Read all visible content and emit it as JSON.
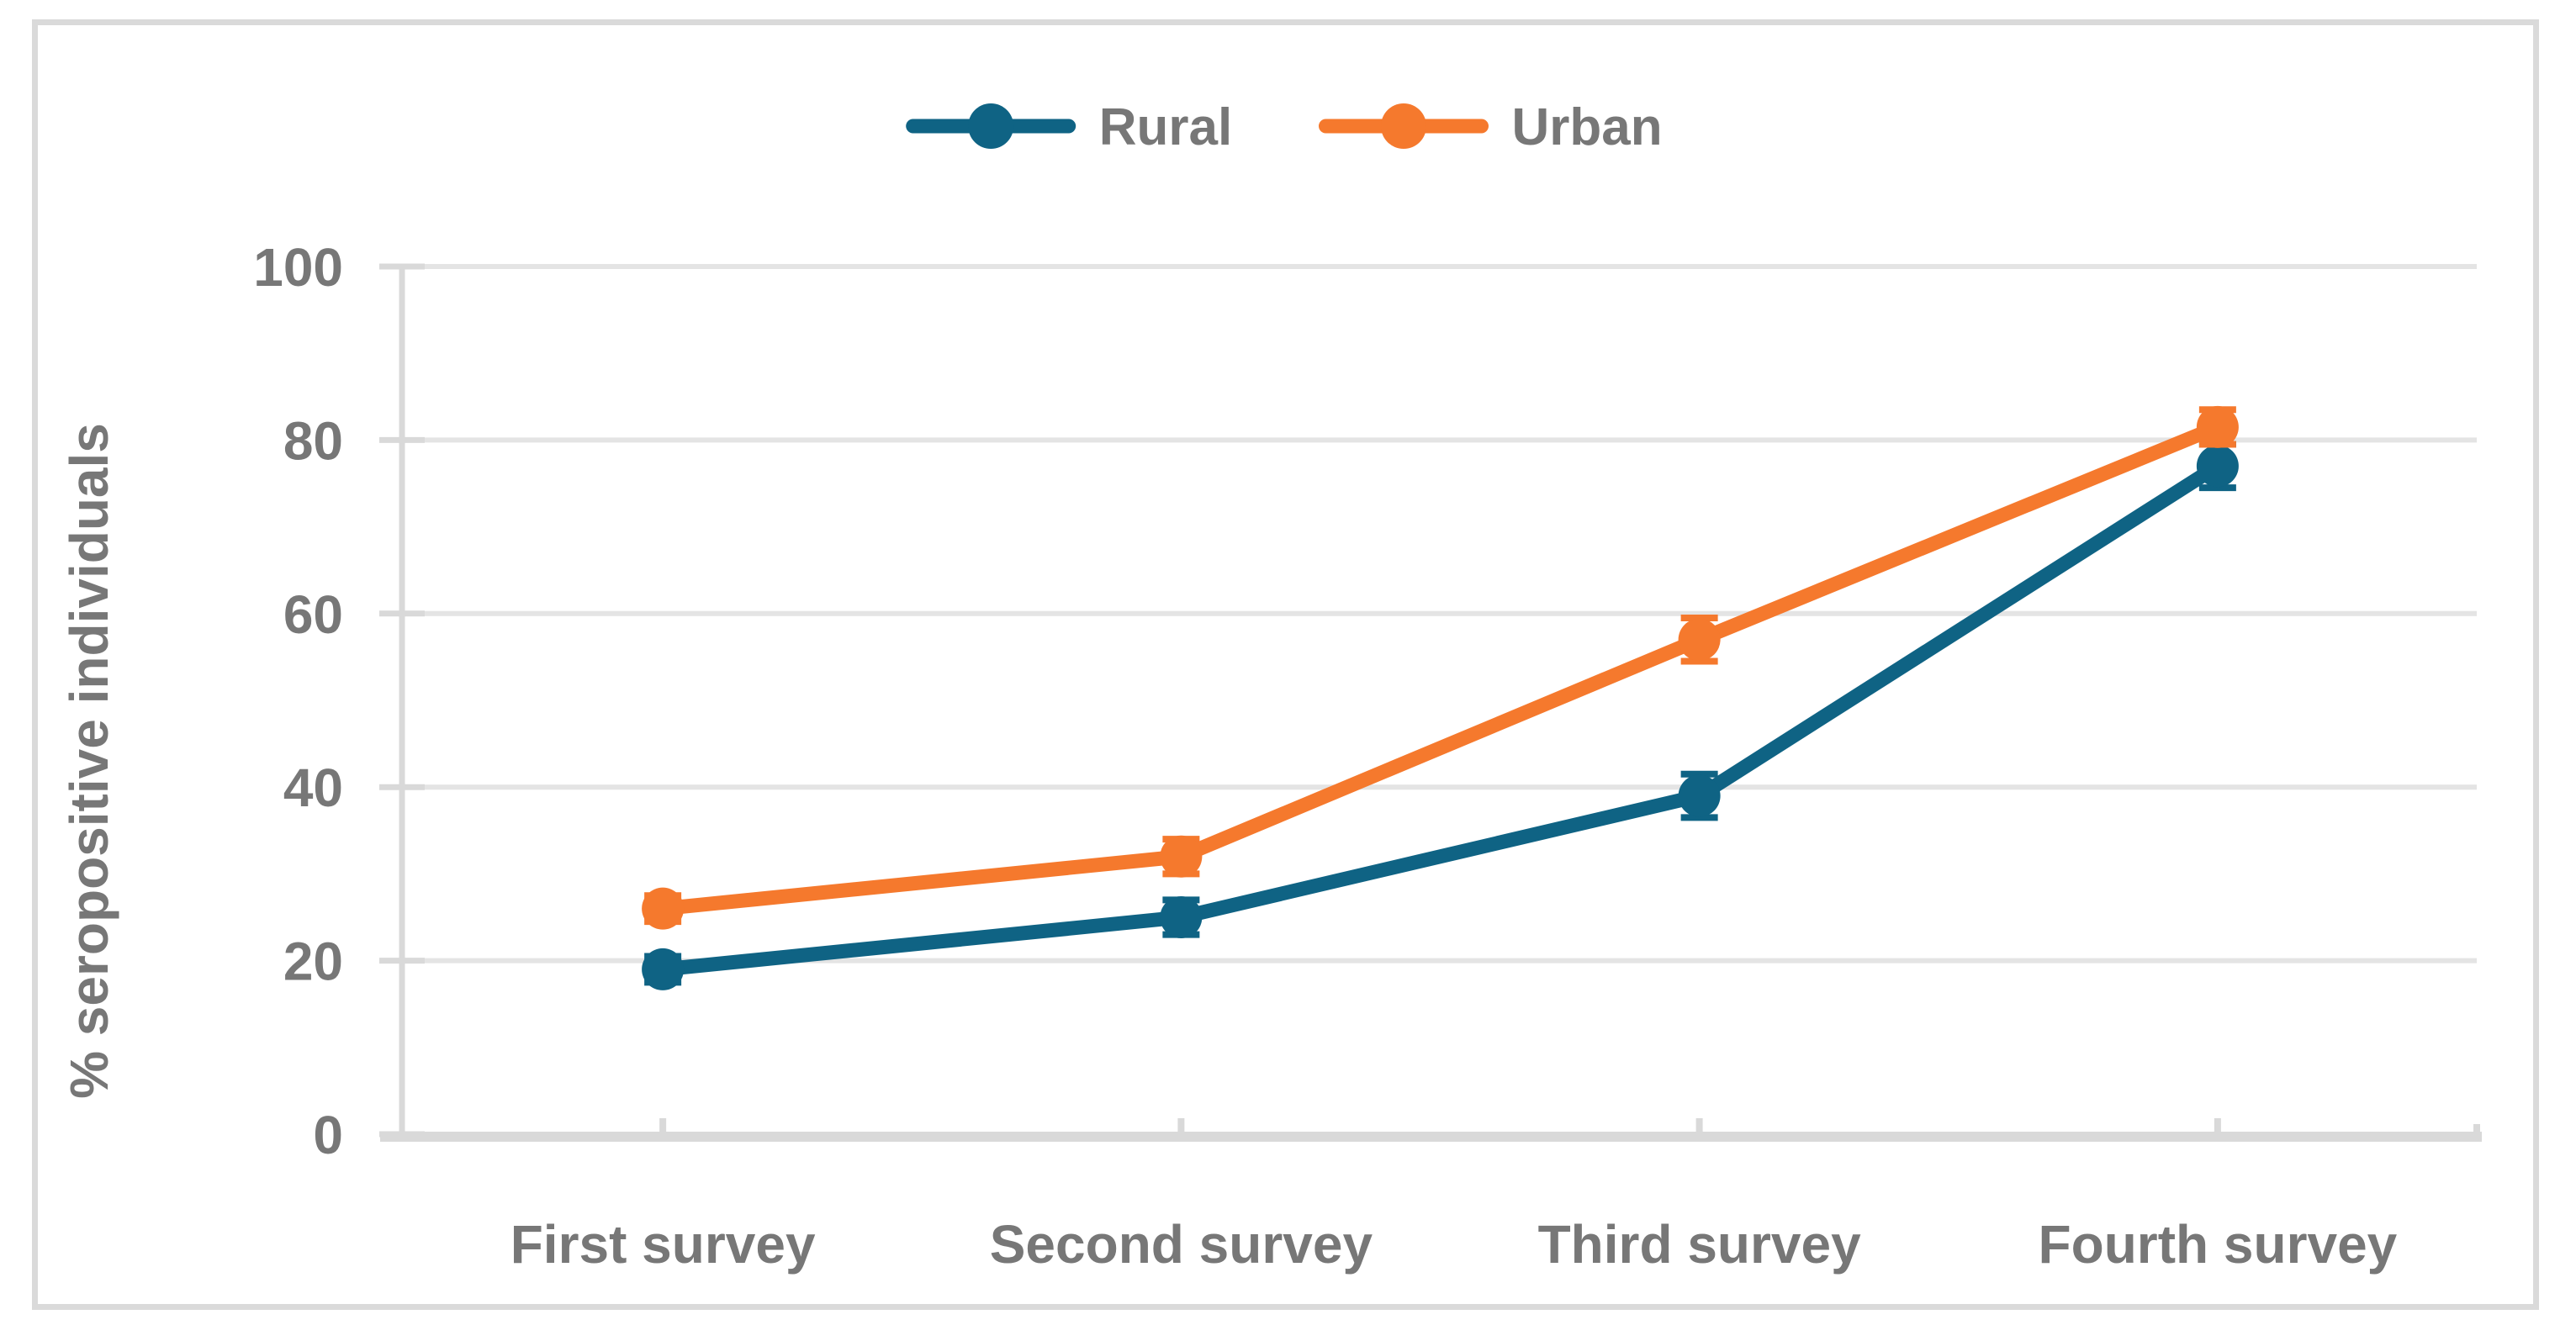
{
  "chart_data": {
    "type": "line",
    "title": "",
    "categories": [
      "First survey",
      "Second survey",
      "Third survey",
      "Fourth survey"
    ],
    "series": [
      {
        "name": "Rural",
        "color": "#0F6384",
        "values": [
          19,
          25,
          39,
          77
        ],
        "error_bars": [
          1.5,
          2,
          2.5,
          2.5
        ]
      },
      {
        "name": "Urban",
        "color": "#F5792D",
        "values": [
          26,
          32,
          57,
          81.5
        ],
        "error_bars": [
          1.5,
          2,
          2.5,
          2
        ]
      }
    ],
    "xlabel": "",
    "ylabel": "% seropositive individuals",
    "ylim": [
      0,
      100
    ],
    "yticks": [
      0,
      20,
      40,
      60,
      80,
      100
    ],
    "grid": true,
    "marker": "circle",
    "legend_position": "top-center",
    "colors": {
      "text": "#777777",
      "gridline": "#E4E4E4",
      "axis": "#D9D9D9",
      "border": "#DADADA",
      "background": "#FFFFFF"
    }
  },
  "legend": {
    "items": [
      {
        "label": "Rural"
      },
      {
        "label": "Urban"
      }
    ]
  }
}
